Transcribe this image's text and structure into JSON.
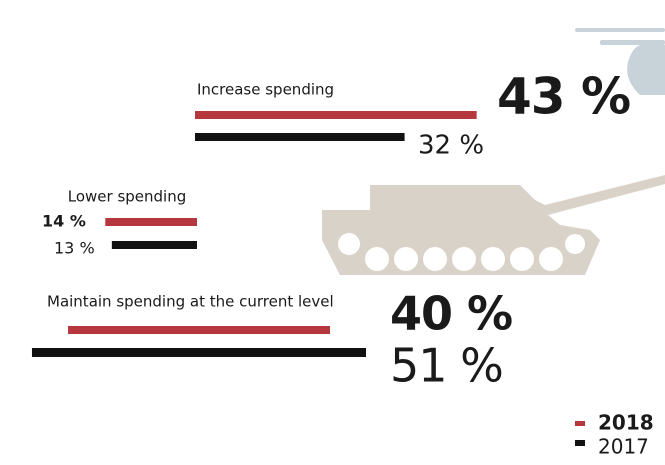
{
  "chart_data": {
    "type": "bar",
    "categories": [
      "Increase spending",
      "Lower spending",
      "Maintain spending at the current level"
    ],
    "series": [
      {
        "name": "2018",
        "color": "#b5383e",
        "values": [
          43,
          14,
          40
        ],
        "value_labels": [
          "43 %",
          "14 %",
          "40 %"
        ]
      },
      {
        "name": "2017",
        "color": "#111111",
        "values": [
          32,
          13,
          51
        ],
        "value_labels": [
          "32 %",
          "13 %",
          "51 %"
        ]
      }
    ]
  }
}
